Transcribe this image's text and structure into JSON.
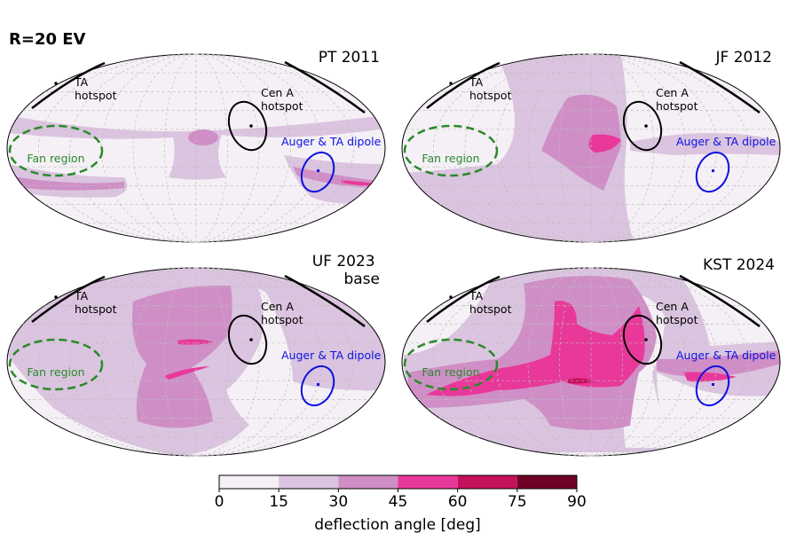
{
  "figure": {
    "heading": "R=20 EV"
  },
  "chart_data": {
    "type": "heatmap",
    "projection": "mollweide",
    "grid": true,
    "panels": [
      {
        "title": "PT 2011"
      },
      {
        "title": "JF 2012"
      },
      {
        "title": "UF 2023 base"
      },
      {
        "title": "KST 2024"
      }
    ],
    "annotations": {
      "ta_hotspot": "TA hotspot",
      "cen_a_hotspot": "Cen A hotspot",
      "auger_ta_dipole": "Auger & TA dipole",
      "fan_region": "Fan region"
    },
    "colorbar": {
      "label": "deflection angle [deg]",
      "ticks": [
        0,
        15,
        30,
        45,
        60,
        75,
        90
      ],
      "bins": [
        {
          "range": [
            0,
            15
          ],
          "color": "#f5f0f6"
        },
        {
          "range": [
            15,
            30
          ],
          "color": "#dbc4df"
        },
        {
          "range": [
            30,
            45
          ],
          "color": "#cf8fc6"
        },
        {
          "range": [
            45,
            60
          ],
          "color": "#e8399a"
        },
        {
          "range": [
            60,
            75
          ],
          "color": "#c5105c"
        },
        {
          "range": [
            75,
            90
          ],
          "color": "#6f0026"
        }
      ]
    },
    "colors": {
      "ta_hotspot": "#000000",
      "cen_a": "#000000",
      "dipole": "#0b12e0",
      "fan_region": "#2a8a2a"
    }
  }
}
